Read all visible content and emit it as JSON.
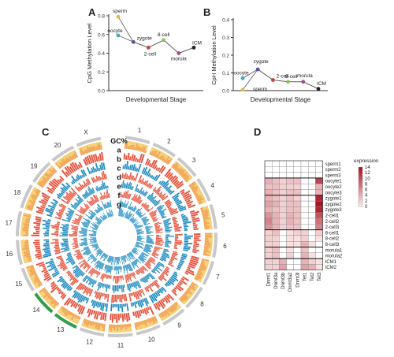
{
  "panels": {
    "A": "A",
    "B": "B",
    "C": "C",
    "D": "D"
  },
  "chart_data": [
    {
      "type": "line",
      "panel": "A",
      "xlabel": "Developmental Stage",
      "ylabel": "CpG Methylation Level",
      "ylim": [
        0.0,
        0.8
      ],
      "yticks": [
        "0.0",
        "0.2",
        "0.4",
        "0.6",
        "0.8"
      ],
      "series": [
        {
          "label": "sperm",
          "line": "A",
          "value": 0.79,
          "color": "#e8b93a"
        },
        {
          "label": "oocyte",
          "line": "B",
          "value": 0.59,
          "color": "#3fa6c2"
        },
        {
          "label": "zygote",
          "line": "AB",
          "value": 0.52,
          "color": "#5b4ea0"
        },
        {
          "label": "2-cell",
          "line": "AB",
          "value": 0.46,
          "color": "#c9403a"
        },
        {
          "label": "8-cell",
          "line": "AB",
          "value": 0.54,
          "color": "#8cc152"
        },
        {
          "label": "morula",
          "line": "AB",
          "value": 0.4,
          "color": "#9b4f86"
        },
        {
          "label": "ICM",
          "line": "AB",
          "value": 0.46,
          "color": "#222222"
        }
      ]
    },
    {
      "type": "line",
      "panel": "B",
      "xlabel": "Developmental Stage",
      "ylabel": "CpH Methylation Level",
      "ylim": [
        0.0,
        0.4
      ],
      "yticks": [
        "0.0",
        "0.1",
        "0.2",
        "0.3",
        "0.4"
      ],
      "series": [
        {
          "label": "oocyte",
          "line": "B",
          "value": 0.07,
          "color": "#3fa6c2"
        },
        {
          "label": "sperm",
          "line": "A",
          "value": 0.005,
          "color": "#e8b93a"
        },
        {
          "label": "zygote",
          "line": "AB",
          "value": 0.12,
          "color": "#5b4ea0"
        },
        {
          "label": "2-cell",
          "line": "AB",
          "value": 0.06,
          "color": "#c9403a"
        },
        {
          "label": "8-cell",
          "line": "AB",
          "value": 0.05,
          "color": "#8cc152"
        },
        {
          "label": "morula",
          "line": "AB",
          "value": 0.05,
          "color": "#9b4f86"
        },
        {
          "label": "ICM",
          "line": "AB",
          "value": 0.01,
          "color": "#222222"
        }
      ]
    },
    {
      "type": "circos",
      "panel": "C",
      "chromosomes": [
        "1",
        "2",
        "3",
        "4",
        "5",
        "6",
        "7",
        "8",
        "9",
        "10",
        "11",
        "12",
        "13",
        "14",
        "15",
        "16",
        "17",
        "18",
        "19",
        "20",
        "X"
      ],
      "track_labels": [
        "GC%",
        "a",
        "b",
        "c",
        "d",
        "e",
        "f",
        "g"
      ],
      "colors": {
        "orange": "#f2a35a",
        "blue": "#1f8cc0",
        "red": "#e6553f",
        "green": "#2e9e4a",
        "yellow": "#f5d27a"
      }
    },
    {
      "type": "heatmap",
      "panel": "D",
      "columns": [
        "Dnmt1",
        "Dnmt3a",
        "Dnmt3b",
        "Dnmt3a2",
        "Dnmt3l",
        "Tet1",
        "Tet2",
        "Tet3"
      ],
      "rows": [
        "sperm1",
        "sperm2",
        "sperm3",
        "oocyte1",
        "oocyte2",
        "oocyte3",
        "zygote1",
        "zygote2",
        "zygote3",
        "2-cell1",
        "2-cell2",
        "2-cell3",
        "8-cell1",
        "8-cell2",
        "8-cell3",
        "morula1",
        "morula2",
        "ICM1",
        "ICM2"
      ],
      "legend_title": "expression",
      "legend_ticks": [
        "14",
        "12",
        "10",
        "8",
        "6",
        "4",
        "2",
        "0"
      ],
      "values": [
        [
          0,
          0,
          0,
          0,
          0,
          0,
          0,
          0
        ],
        [
          0,
          0,
          0,
          0,
          0,
          0,
          0,
          0
        ],
        [
          0,
          0,
          0,
          0,
          0,
          0,
          0,
          0
        ],
        [
          4,
          3,
          2,
          3,
          3,
          0,
          0,
          11
        ],
        [
          3,
          3,
          2,
          2,
          2,
          0,
          0,
          4
        ],
        [
          4,
          3,
          2,
          3,
          3,
          0,
          0,
          4
        ],
        [
          4,
          3,
          2,
          3,
          2,
          0,
          0,
          13
        ],
        [
          5,
          4,
          2,
          3,
          3,
          0,
          0,
          14
        ],
        [
          4,
          3,
          2,
          3,
          3,
          0,
          0,
          13
        ],
        [
          6,
          4,
          2,
          4,
          3,
          0,
          0,
          10
        ],
        [
          7,
          4,
          2,
          4,
          3,
          0,
          0,
          8
        ],
        [
          6,
          4,
          2,
          3,
          3,
          0,
          0,
          7
        ],
        [
          2,
          3,
          0,
          1,
          2,
          2,
          0,
          2
        ],
        [
          2,
          2,
          0,
          1,
          1,
          2,
          0,
          1
        ],
        [
          2,
          2,
          0,
          1,
          1,
          4,
          1,
          0
        ],
        [
          2,
          3,
          0,
          1,
          0,
          3,
          0,
          0
        ],
        [
          2,
          3,
          0,
          2,
          0,
          4,
          1,
          0
        ],
        [
          2,
          2,
          4,
          0,
          0,
          4,
          2,
          1
        ],
        [
          2,
          2,
          5,
          0,
          0,
          5,
          4,
          1
        ]
      ],
      "max_value": 14
    }
  ]
}
